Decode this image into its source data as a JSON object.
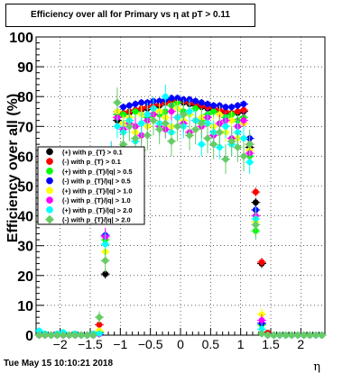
{
  "title": "Efficiency over all for Primary vs   η at pT > 0.11",
  "footer_date": "Tue May 15 10:10:21 2018",
  "chart_data": {
    "type": "scatter",
    "xlabel": "η",
    "ylabel": "Efficiency over all (%)",
    "xlim": [
      -2.4,
      2.4
    ],
    "ylim": [
      0,
      100
    ],
    "xticks": [
      {
        "v": -2,
        "label": "−2"
      },
      {
        "v": -1.5,
        "label": "−1.5"
      },
      {
        "v": -1,
        "label": "−1"
      },
      {
        "v": -0.5,
        "label": "−0.5"
      },
      {
        "v": 0,
        "label": "0"
      },
      {
        "v": 0.5,
        "label": "0.5"
      },
      {
        "v": 1,
        "label": "1"
      },
      {
        "v": 1.5,
        "label": "1.5"
      },
      {
        "v": 2,
        "label": "2"
      }
    ],
    "yticks": [
      0,
      10,
      20,
      30,
      40,
      50,
      60,
      70,
      80,
      90,
      100
    ],
    "grid": true,
    "legend_position": "middle-left",
    "series": [
      {
        "name": "(+) with p_{T} > 0.1",
        "color": "#000000",
        "marker": "circle"
      },
      {
        "name": "(-) with p_{T} > 0.1",
        "color": "#ff0000",
        "marker": "circle"
      },
      {
        "name": "(+) with p_{T}/|q| > 0.5",
        "color": "#00ff00",
        "marker": "circle"
      },
      {
        "name": "(-) with p_{T}/|q| > 0.5",
        "color": "#0000ff",
        "marker": "circle"
      },
      {
        "name": "(+) with p_{T}/|q| > 1.0",
        "color": "#ffff00",
        "marker": "circle"
      },
      {
        "name": "(-) with p_{T}/|q| > 1.0",
        "color": "#ff00ff",
        "marker": "circle"
      },
      {
        "name": "(+) with p_{T}/|q| > 2.0",
        "color": "#00ffff",
        "marker": "circle"
      },
      {
        "name": "(-) with p_{T}/|q| > 2.0",
        "color": "#66cc66",
        "marker": "diamond"
      }
    ],
    "x": [
      -2.35,
      -2.25,
      -2.15,
      -2.05,
      -1.95,
      -1.85,
      -1.75,
      -1.65,
      -1.55,
      -1.45,
      -1.35,
      -1.25,
      -1.15,
      -1.05,
      -0.95,
      -0.85,
      -0.75,
      -0.65,
      -0.55,
      -0.45,
      -0.35,
      -0.25,
      -0.15,
      -0.05,
      0.05,
      0.15,
      0.25,
      0.35,
      0.45,
      0.55,
      0.65,
      0.75,
      0.85,
      0.95,
      1.05,
      1.15,
      1.25,
      1.35,
      1.45,
      1.55,
      1.65,
      1.75,
      1.85,
      1.95,
      2.05,
      2.15,
      2.25,
      2.35
    ],
    "values": [
      [
        0,
        0,
        0,
        0,
        0,
        0,
        0,
        0,
        0,
        0,
        0.5,
        20.5,
        48.5,
        72,
        74,
        74.5,
        75,
        75.5,
        76,
        76.5,
        77,
        78,
        78.5,
        78.5,
        78,
        77.5,
        77,
        76.5,
        76,
        75.5,
        75,
        74.5,
        74,
        74.5,
        75,
        63,
        44.5,
        24,
        0.5,
        0,
        0,
        0,
        0,
        0,
        0,
        0,
        0,
        0
      ],
      [
        0,
        0,
        0,
        0,
        0,
        0,
        0,
        0,
        0,
        0,
        3.5,
        40,
        56,
        73,
        74.5,
        75,
        75.5,
        76,
        76.5,
        77,
        77.5,
        78,
        78.5,
        79,
        78.5,
        78,
        77.5,
        77,
        76.5,
        76,
        75.5,
        75,
        74.5,
        75,
        75.5,
        64,
        48,
        24.5,
        0.8,
        0,
        0,
        0,
        0,
        0,
        0,
        0,
        0,
        0
      ],
      [
        0,
        0,
        0,
        0,
        0,
        0,
        0,
        0,
        0,
        0,
        1,
        32,
        57,
        74,
        74,
        72,
        75,
        71,
        73,
        76,
        74,
        75,
        77,
        78,
        75,
        74,
        76,
        72,
        74,
        75,
        71,
        73,
        74,
        72,
        73,
        60,
        35,
        3.5,
        0,
        0,
        0,
        0,
        0,
        0,
        0,
        0,
        0,
        0
      ],
      [
        0,
        0,
        0,
        0,
        0,
        0,
        0,
        0,
        0,
        0,
        0.5,
        33.5,
        58.5,
        75,
        76.5,
        77,
        77.5,
        78,
        78,
        78.5,
        78.5,
        79,
        79.5,
        79.5,
        79,
        79,
        78.5,
        78,
        77.5,
        77,
        77,
        76.5,
        76.5,
        77,
        77.5,
        66,
        42,
        4,
        0,
        0,
        0,
        0,
        0,
        0,
        0,
        0,
        0,
        0
      ],
      [
        0,
        0,
        0,
        0,
        0,
        0,
        0,
        0,
        0,
        0,
        1.5,
        28,
        58,
        75,
        71,
        73,
        68,
        74,
        70,
        72,
        75,
        73,
        70,
        76,
        72,
        74,
        69,
        73,
        71,
        70,
        74,
        68,
        72,
        66,
        71,
        62,
        38,
        7,
        0,
        0,
        0,
        0,
        0,
        0,
        0,
        0,
        0,
        0
      ],
      [
        0,
        0,
        0,
        0,
        0,
        0,
        0,
        0,
        0,
        0,
        0.3,
        33,
        62,
        73,
        69,
        71,
        70,
        67,
        72,
        74,
        70,
        69,
        75,
        73,
        71,
        68,
        72,
        70,
        73,
        67,
        71,
        72,
        66,
        70,
        72,
        61,
        40,
        5,
        0,
        0,
        0,
        0,
        0,
        0,
        0,
        0,
        0,
        0
      ],
      [
        1.5,
        0.5,
        0,
        0.5,
        1,
        0,
        0.5,
        0,
        0,
        0.5,
        0.5,
        30.5,
        61,
        70,
        68,
        72,
        65,
        71,
        74,
        76,
        71,
        80,
        68,
        73,
        70,
        75,
        72,
        64,
        71,
        68,
        63,
        70,
        64,
        68,
        66,
        58,
        39,
        2,
        0,
        0,
        0,
        0,
        0,
        0,
        0,
        0,
        0,
        0
      ],
      [
        0,
        0,
        0,
        0,
        0,
        0,
        0,
        0,
        0,
        0,
        6,
        25,
        50.5,
        78,
        64,
        70,
        66,
        62,
        67,
        72,
        69,
        71,
        65,
        70,
        74,
        67,
        69,
        71,
        66,
        64,
        68,
        59,
        65,
        63,
        60,
        64,
        37,
        0.5,
        0,
        0,
        0,
        0,
        0,
        0,
        0,
        0,
        0,
        0
      ]
    ],
    "errors": [
      [
        0,
        0,
        0,
        0,
        0,
        0,
        0,
        0,
        0,
        0,
        0.5,
        1.5,
        1.5,
        1.2,
        1.2,
        1.2,
        1.2,
        1.2,
        1.2,
        1.2,
        1.2,
        1.2,
        1.2,
        1.2,
        1.2,
        1.2,
        1.2,
        1.2,
        1.2,
        1.2,
        1.2,
        1.2,
        1.2,
        1.2,
        1.2,
        1.5,
        1.5,
        1.5,
        0.5,
        0,
        0,
        0,
        0,
        0,
        0,
        0,
        0,
        0
      ],
      [
        0,
        0,
        0,
        0,
        0,
        0,
        0,
        0,
        0,
        0,
        0.5,
        1.5,
        1.5,
        1.2,
        1.2,
        1.2,
        1.2,
        1.2,
        1.2,
        1.2,
        1.2,
        1.2,
        1.2,
        1.2,
        1.2,
        1.2,
        1.2,
        1.2,
        1.2,
        1.2,
        1.2,
        1.2,
        1.2,
        1.2,
        1.2,
        1.5,
        1.5,
        1.5,
        0.5,
        0,
        0,
        0,
        0,
        0,
        0,
        0,
        0,
        0
      ],
      [
        0,
        0,
        0,
        0,
        0,
        0,
        0,
        0,
        0,
        0,
        0.5,
        2,
        2,
        2,
        2,
        2,
        2,
        2,
        2,
        2,
        2,
        2,
        2,
        2,
        2,
        2,
        2,
        2,
        2,
        2,
        2,
        2,
        2,
        2,
        2,
        2,
        2,
        1,
        0,
        0,
        0,
        0,
        0,
        0,
        0,
        0,
        0,
        0
      ],
      [
        0,
        0,
        0,
        0,
        0,
        0,
        0,
        0,
        0,
        0,
        0.5,
        1.5,
        1.5,
        1.2,
        1.2,
        1.2,
        1.2,
        1.2,
        1.2,
        1.2,
        1.2,
        1.2,
        1.2,
        1.2,
        1.2,
        1.2,
        1.2,
        1.2,
        1.2,
        1.2,
        1.2,
        1.2,
        1.2,
        1.2,
        1.2,
        1.5,
        1.5,
        1,
        0,
        0,
        0,
        0,
        0,
        0,
        0,
        0,
        0,
        0
      ],
      [
        0,
        0,
        0,
        0,
        0,
        0,
        0,
        0,
        0,
        0,
        1,
        3,
        3,
        3,
        3,
        3,
        3,
        3,
        3,
        3,
        3,
        3,
        3,
        3,
        3,
        3,
        3,
        3,
        3,
        3,
        3,
        3,
        3,
        3,
        3,
        3,
        3,
        2,
        0,
        0,
        0,
        0,
        0,
        0,
        0,
        0,
        0,
        0
      ],
      [
        0,
        0,
        0,
        0,
        0,
        0,
        0,
        0,
        0,
        0,
        0.3,
        3,
        3,
        3,
        3,
        3,
        3,
        3,
        3,
        3,
        3,
        3,
        3,
        3,
        3,
        3,
        3,
        3,
        3,
        3,
        3,
        3,
        3,
        3,
        3,
        3,
        3,
        2,
        0,
        0,
        0,
        0,
        0,
        0,
        0,
        0,
        0,
        0
      ],
      [
        1,
        0.5,
        0,
        0.5,
        1,
        0,
        0.5,
        0,
        0,
        0.5,
        0.5,
        4,
        4,
        4,
        4,
        4,
        4,
        4,
        4,
        4,
        4,
        4,
        4,
        4,
        4,
        4,
        4,
        4,
        4,
        4,
        4,
        4,
        4,
        4,
        4,
        4,
        4,
        2,
        0,
        0,
        0,
        0,
        0,
        0,
        0,
        0,
        0,
        0
      ],
      [
        0,
        0,
        0,
        0,
        0,
        0,
        0,
        0,
        0,
        0,
        2,
        4,
        4,
        5,
        5,
        5,
        5,
        5,
        5,
        5,
        5,
        5,
        5,
        5,
        5,
        5,
        5,
        5,
        5,
        5,
        5,
        5,
        5,
        5,
        5,
        5,
        5,
        1,
        0,
        0,
        0,
        0,
        0,
        0,
        0,
        0,
        0,
        0
      ]
    ]
  }
}
